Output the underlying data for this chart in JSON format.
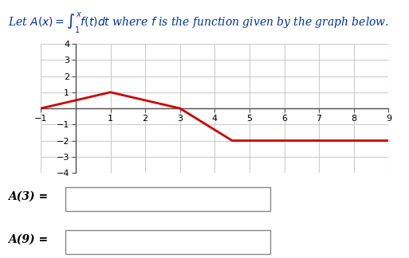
{
  "title_text": "Let $A(x) = \\int_1^x f(t)dt$ where $f$ is the function given by the graph below.",
  "graph_xlim": [
    -1,
    9
  ],
  "graph_ylim": [
    -4,
    4
  ],
  "xticks": [
    -1,
    1,
    2,
    3,
    4,
    5,
    6,
    7,
    8,
    9
  ],
  "yticks": [
    -4,
    -3,
    -2,
    -1,
    1,
    2,
    3,
    4
  ],
  "curve_x": [
    -1,
    1,
    3,
    4.5,
    9
  ],
  "curve_y": [
    0,
    1,
    0,
    -2,
    -2
  ],
  "curve_color": "#cc0000",
  "curve_linewidth": 2.0,
  "grid_color": "#cccccc",
  "axis_color": "#555555",
  "bg_color": "#ffffff",
  "label_A3": "A(3) =",
  "label_A9": "A(9) =",
  "title_color": "#003399",
  "text_color": "#000000",
  "box_color": "#888888"
}
